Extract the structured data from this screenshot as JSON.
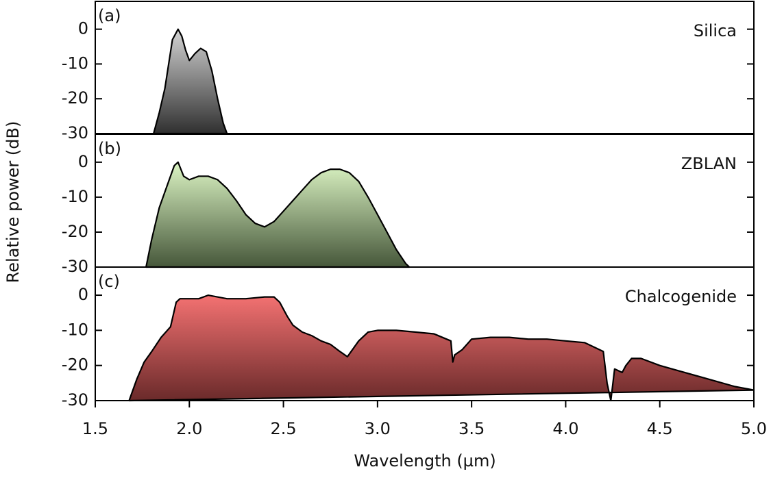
{
  "chart_data": [
    {
      "type": "area",
      "panel_label": "(a)",
      "title": "Silica",
      "x": [
        1.81,
        1.84,
        1.87,
        1.89,
        1.91,
        1.93,
        1.94,
        1.96,
        1.98,
        2.0,
        2.03,
        2.06,
        2.09,
        2.12,
        2.15,
        2.18,
        2.2
      ],
      "values": [
        -30,
        -24,
        -17,
        -10,
        -3,
        -1,
        0,
        -2,
        -6,
        -9,
        -7,
        -5.5,
        -6.5,
        -12,
        -20,
        -27,
        -30
      ],
      "gradient": [
        "#d4d4d4",
        "#303030"
      ],
      "line_color": "#000000",
      "xlim": [
        1.5,
        5.0
      ],
      "ylim": [
        -30,
        8
      ],
      "yticks": [
        0,
        -10,
        -20,
        -30
      ]
    },
    {
      "type": "area",
      "panel_label": "(b)",
      "title": "ZBLAN",
      "ylabel": "Relative power (dB)",
      "x": [
        1.77,
        1.8,
        1.84,
        1.88,
        1.92,
        1.94,
        1.97,
        2.0,
        2.05,
        2.1,
        2.15,
        2.2,
        2.25,
        2.3,
        2.35,
        2.4,
        2.45,
        2.5,
        2.55,
        2.6,
        2.65,
        2.7,
        2.75,
        2.8,
        2.85,
        2.9,
        2.95,
        3.0,
        3.05,
        3.1,
        3.15,
        3.17
      ],
      "values": [
        -30,
        -22,
        -13,
        -7,
        -1,
        0,
        -4,
        -5,
        -4,
        -4,
        -5,
        -7.5,
        -11,
        -15,
        -17.5,
        -18.5,
        -17,
        -14,
        -11,
        -8,
        -5,
        -3,
        -2,
        -2,
        -3,
        -5.5,
        -10,
        -15,
        -20,
        -25,
        -29,
        -30
      ],
      "gradient": [
        "#dcf5c4",
        "#46573a"
      ],
      "line_color": "#000000",
      "xlim": [
        1.5,
        5.0
      ],
      "ylim": [
        -30,
        8
      ],
      "yticks": [
        0,
        -10,
        -20,
        -30
      ]
    },
    {
      "type": "area",
      "panel_label": "(c)",
      "title": "Chalcogenide",
      "xlabel": "Wavelength (µm)",
      "x": [
        1.68,
        1.72,
        1.76,
        1.8,
        1.85,
        1.9,
        1.93,
        1.95,
        2.0,
        2.05,
        2.1,
        2.2,
        2.3,
        2.4,
        2.45,
        2.48,
        2.52,
        2.55,
        2.6,
        2.65,
        2.7,
        2.75,
        2.8,
        2.84,
        2.86,
        2.9,
        2.95,
        3.0,
        3.1,
        3.2,
        3.3,
        3.39,
        3.4,
        3.41,
        3.45,
        3.5,
        3.6,
        3.7,
        3.8,
        3.9,
        4.0,
        4.1,
        4.2,
        4.22,
        4.24,
        4.26,
        4.3,
        4.32,
        4.35,
        4.4,
        4.5,
        4.6,
        4.7,
        4.8,
        4.9,
        5.0
      ],
      "values": [
        -30,
        -24,
        -19,
        -16,
        -12,
        -9,
        -2,
        -1,
        -1,
        -1,
        0,
        -1,
        -1,
        -0.5,
        -0.5,
        -2,
        -6,
        -8.5,
        -10.5,
        -11.5,
        -13,
        -14,
        -16,
        -17.5,
        -16,
        -13,
        -10.5,
        -10,
        -10,
        -10.5,
        -11,
        -13,
        -19,
        -17,
        -15.5,
        -12.5,
        -12,
        -12,
        -12.5,
        -12.5,
        -13,
        -13.5,
        -16,
        -25,
        -30,
        -21,
        -22,
        -20,
        -18,
        -18,
        -20,
        -21.5,
        -23,
        -24.5,
        -26,
        -27
      ],
      "gradient": [
        "#f47272",
        "#6a2a2a"
      ],
      "line_color": "#000000",
      "xlim": [
        1.5,
        5.0
      ],
      "ylim": [
        -30,
        8
      ],
      "yticks": [
        0,
        -10,
        -20,
        -30
      ],
      "xticks": [
        1.5,
        {
          "value": 2,
          "label": "2.0"
        },
        2.5,
        {
          "value": 3,
          "label": "3.0"
        },
        3.5,
        {
          "value": 4,
          "label": "4.0"
        },
        4.5,
        {
          "value": 5,
          "label": "5.0"
        }
      ]
    }
  ]
}
